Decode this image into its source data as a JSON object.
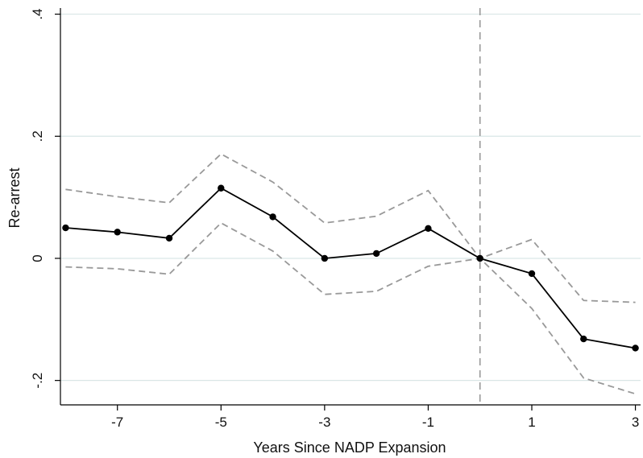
{
  "chart_data": {
    "type": "line",
    "title": "",
    "xlabel": "Years Since NADP Expansion",
    "ylabel": "Re-arrest",
    "xlim": [
      -8.1,
      3.1
    ],
    "ylim": [
      -0.24,
      0.41
    ],
    "x_ticks": [
      -7,
      -5,
      -3,
      -1,
      1,
      3
    ],
    "x_tick_labels": [
      "-7",
      "-5",
      "-3",
      "-1",
      "1",
      "3"
    ],
    "y_ticks": [
      -0.2,
      0,
      0.2,
      0.4
    ],
    "y_tick_labels": [
      "-.2",
      "0",
      ".2",
      ".4"
    ],
    "grid": "horizontal",
    "reference_line": {
      "x": 0,
      "style": "dashed",
      "color": "#999999"
    },
    "x": [
      -8,
      -7,
      -6,
      -5,
      -4,
      -3,
      -2,
      -1,
      0,
      1,
      2,
      3
    ],
    "series": [
      {
        "role": "estimate",
        "style": "solid-with-markers",
        "color": "#000000",
        "values": [
          0.05,
          0.043,
          0.033,
          0.115,
          0.068,
          0.0,
          0.008,
          0.049,
          0.0,
          -0.025,
          -0.132,
          -0.147
        ]
      },
      {
        "role": "upper-ci",
        "style": "dashed",
        "color": "#999999",
        "values": [
          0.113,
          0.101,
          0.091,
          0.171,
          0.125,
          0.058,
          0.069,
          0.111,
          0.0,
          0.031,
          -0.069,
          -0.072
        ]
      },
      {
        "role": "lower-ci",
        "style": "dashed",
        "color": "#999999",
        "values": [
          -0.014,
          -0.017,
          -0.026,
          0.058,
          0.012,
          -0.059,
          -0.054,
          -0.013,
          0.0,
          -0.082,
          -0.196,
          -0.222
        ]
      }
    ]
  }
}
